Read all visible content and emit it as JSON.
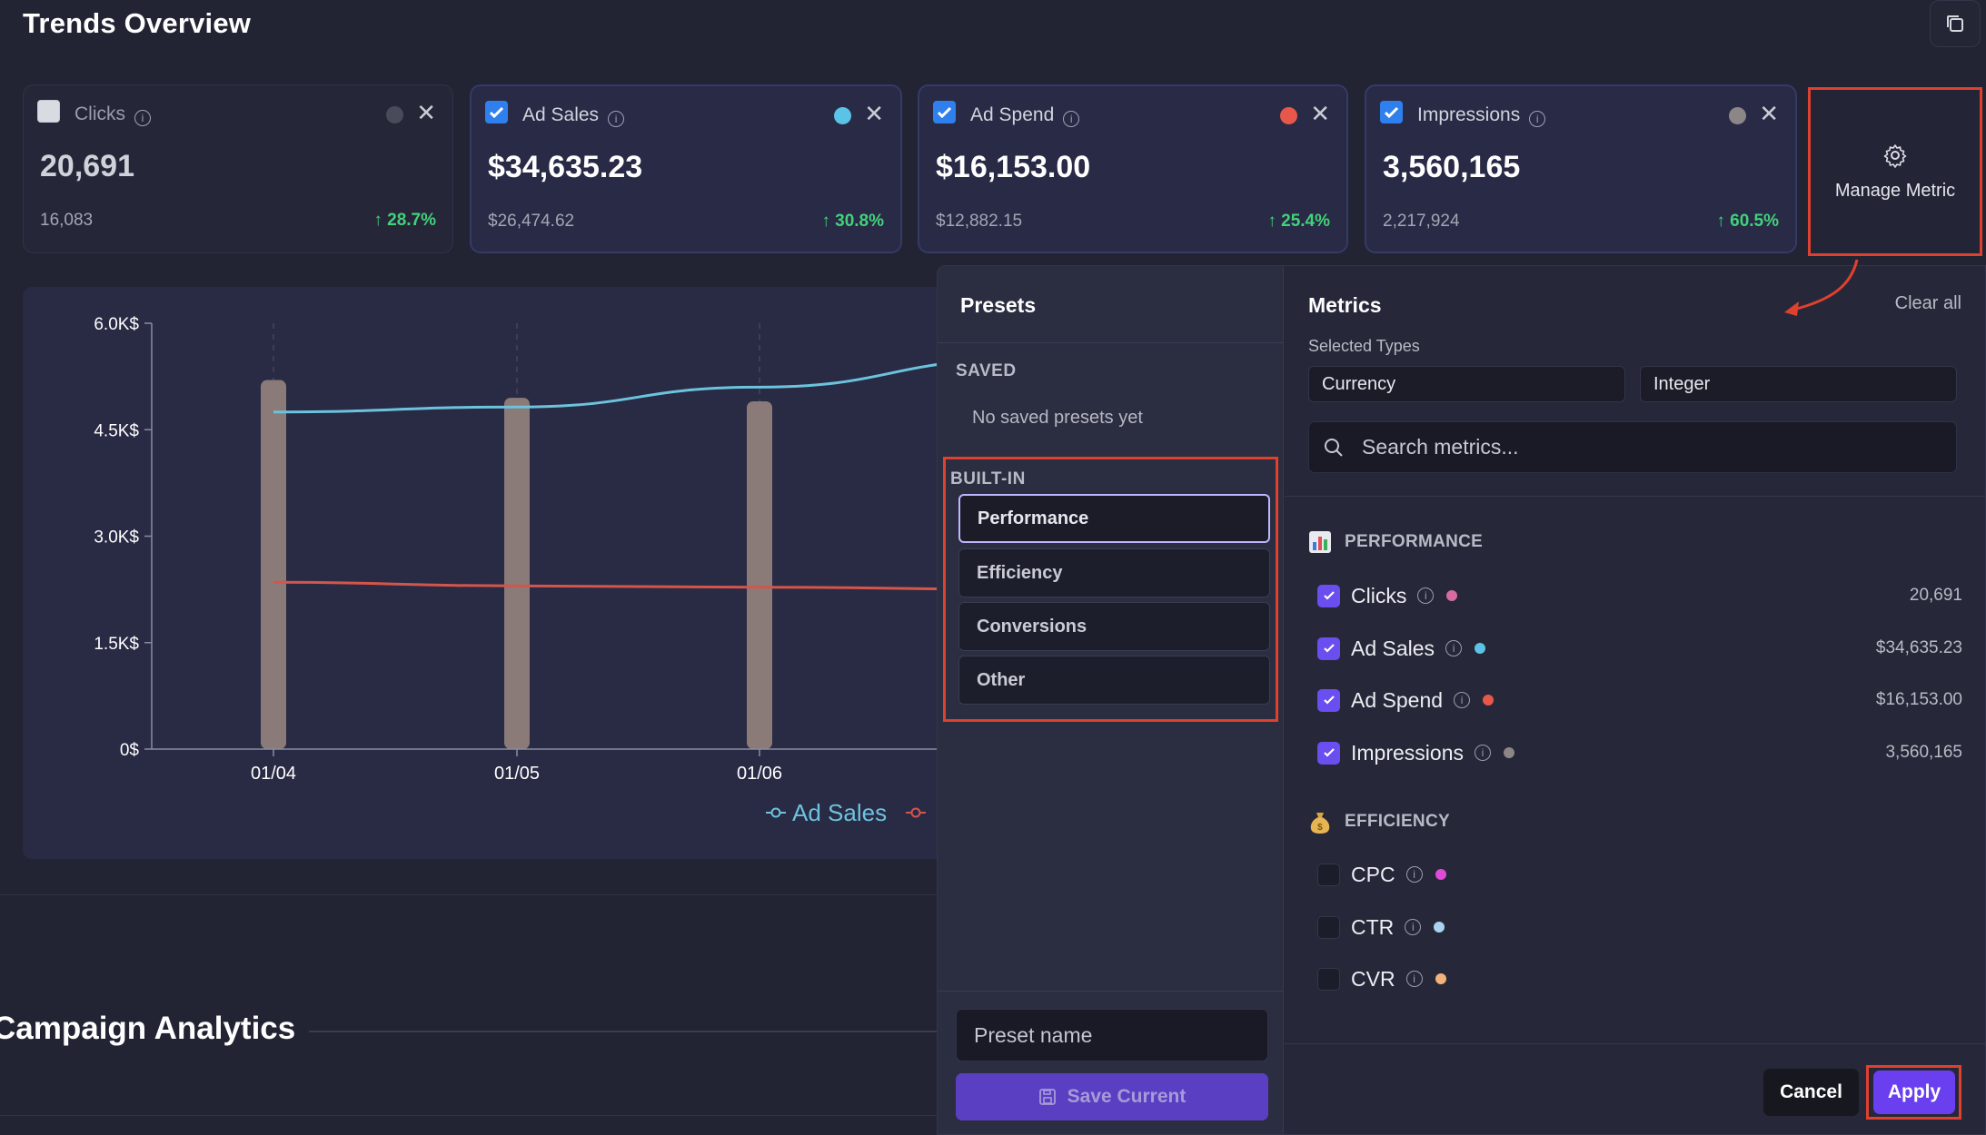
{
  "page_title": "Trends Overview",
  "metric_cards": [
    {
      "name": "Clicks",
      "value": "20,691",
      "previous": "16,083",
      "change": "↑ 28.7%",
      "checked": false,
      "color": "#4a4b5a"
    },
    {
      "name": "Ad Sales",
      "value": "$34,635.23",
      "previous": "$26,474.62",
      "change": "↑ 30.8%",
      "checked": true,
      "color": "#5bc4e6"
    },
    {
      "name": "Ad Spend",
      "value": "$16,153.00",
      "previous": "$12,882.15",
      "change": "↑ 25.4%",
      "checked": true,
      "color": "#e8584a"
    },
    {
      "name": "Impressions",
      "value": "3,560,165",
      "previous": "2,217,924",
      "change": "↑ 60.5%",
      "checked": true,
      "color": "#8c8686"
    }
  ],
  "manage_metric_label": "Manage Metric",
  "chart": {
    "y_ticks": [
      "6.0K$",
      "4.5K$",
      "3.0K$",
      "1.5K$",
      "0$"
    ],
    "x_ticks": [
      "01/04",
      "01/05",
      "01/06"
    ],
    "legend_ad_sales": "Ad Sales"
  },
  "chart_data": {
    "type": "bar",
    "categories": [
      "01/04",
      "01/05",
      "01/06"
    ],
    "ylim": [
      0,
      6000
    ],
    "series": [
      {
        "name": "Ad Sales",
        "type": "line",
        "values": [
          4750,
          4820,
          5100
        ],
        "color": "#6cc3de"
      },
      {
        "name": "Ad Spend",
        "type": "line",
        "values": [
          2350,
          2300,
          2280
        ],
        "color": "#d4554a"
      },
      {
        "name": "Impressions",
        "type": "bar",
        "values": [
          5200,
          4950,
          4900
        ],
        "color": "#8a7a78"
      }
    ]
  },
  "campaign_title": "Campaign Analytics",
  "presets": {
    "title": "Presets",
    "saved_label": "SAVED",
    "no_saved": "No saved presets yet",
    "builtin_label": "BUILT-IN",
    "builtin": [
      "Performance",
      "Efficiency",
      "Conversions",
      "Other"
    ],
    "preset_name_placeholder": "Preset name",
    "save_current": "Save Current"
  },
  "metrics": {
    "title": "Metrics",
    "clear_all": "Clear all",
    "selected_types_label": "Selected Types",
    "types": [
      "Currency",
      "Integer"
    ],
    "search_placeholder": "Search metrics...",
    "performance_label": "PERFORMANCE",
    "performance": [
      {
        "name": "Clicks",
        "value": "20,691",
        "color": "#d46ca2"
      },
      {
        "name": "Ad Sales",
        "value": "$34,635.23",
        "color": "#5bc4e6"
      },
      {
        "name": "Ad Spend",
        "value": "$16,153.00",
        "color": "#e8584a"
      },
      {
        "name": "Impressions",
        "value": "3,560,165",
        "color": "#8c8686"
      }
    ],
    "efficiency_label": "EFFICIENCY",
    "efficiency": [
      {
        "name": "CPC",
        "color": "#e04bd6"
      },
      {
        "name": "CTR",
        "color": "#a8d4ee"
      },
      {
        "name": "CVR",
        "color": "#f2b27a"
      }
    ]
  },
  "buttons": {
    "cancel": "Cancel",
    "apply": "Apply"
  }
}
